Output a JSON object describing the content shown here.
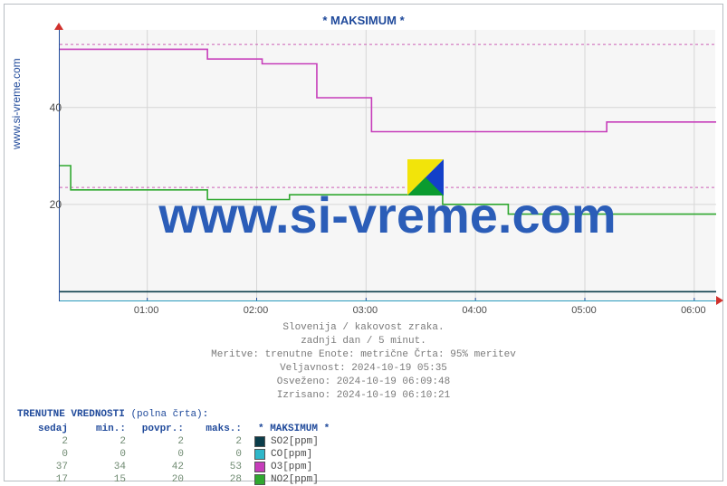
{
  "title": "* MAKSIMUM *",
  "ylabel_link": "www.si-vreme.com",
  "watermark": "www.si-vreme.com",
  "chart": {
    "type": "line-step",
    "background_color": "#f6f6f6",
    "axis_color": "#204a9b",
    "grid_color": "#d6d6d6",
    "dashed_line_color": "#cc5fb5",
    "ylim": [
      0,
      56
    ],
    "yticks": [
      20,
      40
    ],
    "xlim_hours": [
      0.2,
      6.2
    ],
    "xticks": [
      "01:00",
      "02:00",
      "03:00",
      "04:00",
      "05:00",
      "06:00"
    ],
    "series": [
      {
        "name": "SO2[ppm]",
        "color": "#0b3d4a",
        "step_points": [
          [
            0.2,
            2
          ],
          [
            6.2,
            2
          ]
        ]
      },
      {
        "name": "CO[ppm]",
        "color": "#2fb7c9",
        "step_points": [
          [
            0.2,
            0
          ],
          [
            6.2,
            0
          ]
        ]
      },
      {
        "name": "O3[ppm]",
        "color": "#c63dba",
        "step_points": [
          [
            0.2,
            52
          ],
          [
            1.55,
            52
          ],
          [
            1.55,
            50
          ],
          [
            2.05,
            50
          ],
          [
            2.05,
            49
          ],
          [
            2.55,
            49
          ],
          [
            2.55,
            42
          ],
          [
            3.05,
            42
          ],
          [
            3.05,
            35
          ],
          [
            5.2,
            35
          ],
          [
            5.2,
            37
          ],
          [
            6.2,
            37
          ]
        ]
      },
      {
        "name": "NO2[ppm]",
        "color": "#2fa82f",
        "step_points": [
          [
            0.2,
            28
          ],
          [
            0.3,
            28
          ],
          [
            0.3,
            23
          ],
          [
            1.55,
            23
          ],
          [
            1.55,
            21
          ],
          [
            2.3,
            21
          ],
          [
            2.3,
            22
          ],
          [
            3.7,
            22
          ],
          [
            3.7,
            20
          ],
          [
            4.3,
            20
          ],
          [
            4.3,
            18
          ],
          [
            6.2,
            18
          ]
        ]
      }
    ],
    "dashed_95pct": [
      {
        "ref": "O3",
        "y": 53
      },
      {
        "ref": "NO2",
        "y": 23.5
      }
    ]
  },
  "meta": {
    "line1": "Slovenija / kakovost zraka.",
    "line2": "zadnji dan / 5 minut.",
    "line3": "Meritve: trenutne  Enote: metrične  Črta: 95% meritev",
    "line4": "Veljavnost: 2024-10-19 05:35",
    "line5": "Osveženo: 2024-10-19 06:09:48",
    "line6": "Izrisano: 2024-10-19 06:10:21"
  },
  "table": {
    "title": "TRENUTNE VREDNOSTI",
    "title_paren": "(polna črta)",
    "columns": [
      "sedaj",
      "min.:",
      "povpr.:",
      "maks.:"
    ],
    "legend_header": "* MAKSIMUM *",
    "rows": [
      {
        "values": [
          "2",
          "2",
          "2",
          "2"
        ],
        "color": "#0b3d4a",
        "label": "SO2[ppm]"
      },
      {
        "values": [
          "0",
          "0",
          "0",
          "0"
        ],
        "color": "#2fb7c9",
        "label": "CO[ppm]"
      },
      {
        "values": [
          "37",
          "34",
          "42",
          "53"
        ],
        "color": "#c63dba",
        "label": "O3[ppm]"
      },
      {
        "values": [
          "17",
          "15",
          "20",
          "28"
        ],
        "color": "#2fa82f",
        "label": "NO2[ppm]"
      }
    ]
  }
}
